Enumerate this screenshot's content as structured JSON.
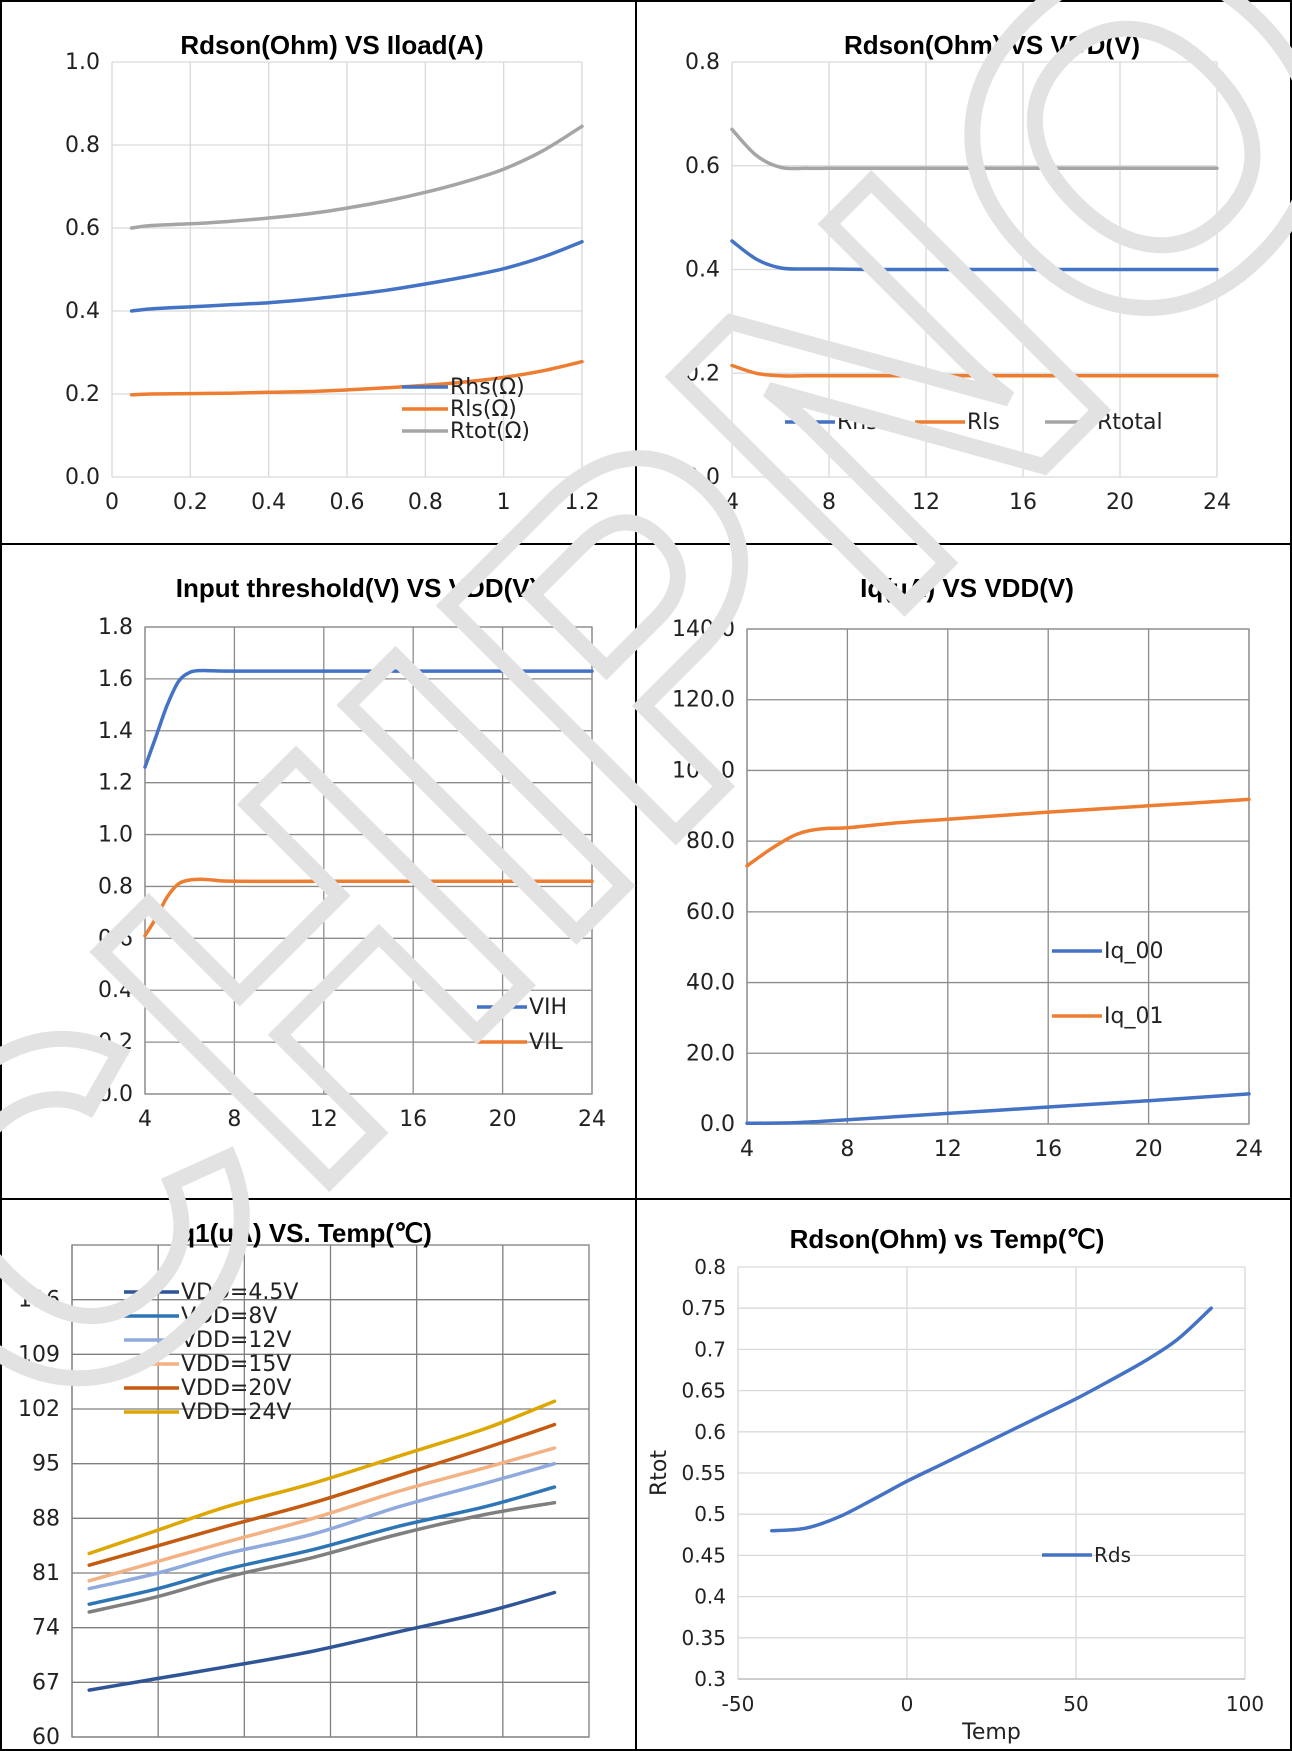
{
  "chart_data": [
    {
      "type": "line",
      "title": "Rdson(Ohm) VS Iload(A)",
      "xlabel": "",
      "ylabel": "",
      "xlim": [
        0,
        1.2
      ],
      "ylim": [
        0,
        1.0
      ],
      "xticks": [
        "0",
        "0.2",
        "0.4",
        "0.6",
        "0.8",
        "1",
        "1.2"
      ],
      "yticks": [
        "0.0",
        "0.2",
        "0.4",
        "0.6",
        "0.8",
        "1.0"
      ],
      "grid": true,
      "legend_position": "bottom-right",
      "series": [
        {
          "name": "Rhs(Ω)",
          "color": "#4472C4",
          "x": [
            0.05,
            0.1,
            0.2,
            0.3,
            0.4,
            0.5,
            0.6,
            0.7,
            0.8,
            0.9,
            1.0,
            1.1,
            1.2
          ],
          "y": [
            0.4,
            0.405,
            0.41,
            0.415,
            0.42,
            0.428,
            0.438,
            0.45,
            0.465,
            0.482,
            0.502,
            0.53,
            0.567
          ]
        },
        {
          "name": "Rls(Ω)",
          "color": "#ED7D31",
          "x": [
            0.05,
            0.1,
            0.2,
            0.3,
            0.4,
            0.5,
            0.6,
            0.7,
            0.8,
            0.9,
            1.0,
            1.1,
            1.2
          ],
          "y": [
            0.198,
            0.2,
            0.201,
            0.202,
            0.204,
            0.206,
            0.21,
            0.215,
            0.221,
            0.229,
            0.24,
            0.256,
            0.278
          ]
        },
        {
          "name": "Rtot(Ω)",
          "color": "#A5A5A5",
          "x": [
            0.05,
            0.1,
            0.2,
            0.3,
            0.4,
            0.5,
            0.6,
            0.7,
            0.8,
            0.9,
            1.0,
            1.1,
            1.2
          ],
          "y": [
            0.6,
            0.606,
            0.61,
            0.616,
            0.624,
            0.634,
            0.648,
            0.665,
            0.686,
            0.711,
            0.742,
            0.786,
            0.845
          ]
        }
      ]
    },
    {
      "type": "line",
      "title": "Rdson(Ohm) VS VDD(V)",
      "xlabel": "",
      "ylabel": "",
      "xlim": [
        4,
        24
      ],
      "ylim": [
        0,
        0.8
      ],
      "xticks": [
        "4",
        "8",
        "12",
        "16",
        "20",
        "24"
      ],
      "yticks": [
        "0.0",
        "0.2",
        "0.4",
        "0.6",
        "0.8"
      ],
      "grid": true,
      "legend_position": "bottom",
      "series": [
        {
          "name": "Rhs",
          "color": "#4472C4",
          "x": [
            4,
            5,
            6,
            7,
            8,
            10,
            12,
            16,
            20,
            24
          ],
          "y": [
            0.455,
            0.42,
            0.403,
            0.401,
            0.401,
            0.4,
            0.4,
            0.4,
            0.4,
            0.4
          ]
        },
        {
          "name": "Rls",
          "color": "#ED7D31",
          "x": [
            4,
            5,
            6,
            7,
            8,
            10,
            12,
            16,
            20,
            24
          ],
          "y": [
            0.215,
            0.2,
            0.195,
            0.195,
            0.195,
            0.195,
            0.195,
            0.195,
            0.195,
            0.195
          ]
        },
        {
          "name": "Rtotal",
          "color": "#A5A5A5",
          "x": [
            4,
            5,
            6,
            7,
            8,
            10,
            12,
            16,
            20,
            24
          ],
          "y": [
            0.67,
            0.62,
            0.597,
            0.595,
            0.595,
            0.595,
            0.595,
            0.595,
            0.595,
            0.595
          ]
        }
      ]
    },
    {
      "type": "line",
      "title": "Input threshold(V) VS VDD(V)",
      "xlabel": "",
      "ylabel": "",
      "xlim": [
        4,
        24
      ],
      "ylim": [
        0,
        1.8
      ],
      "xticks": [
        "4",
        "8",
        "12",
        "16",
        "20",
        "24"
      ],
      "yticks": [
        "0.0",
        "0.2",
        "0.4",
        "0.6",
        "0.8",
        "1.0",
        "1.2",
        "1.4",
        "1.6",
        "1.8"
      ],
      "grid": true,
      "legend_position": "bottom-right",
      "series": [
        {
          "name": "VIH",
          "color": "#4472C4",
          "x": [
            4,
            4.5,
            5,
            5.5,
            6,
            6.5,
            7,
            8,
            12,
            16,
            20,
            24
          ],
          "y": [
            1.26,
            1.38,
            1.5,
            1.59,
            1.625,
            1.632,
            1.631,
            1.63,
            1.63,
            1.63,
            1.63,
            1.63
          ]
        },
        {
          "name": "VIL",
          "color": "#ED7D31",
          "x": [
            4,
            4.5,
            5,
            5.5,
            6,
            6.5,
            7,
            8,
            12,
            16,
            20,
            24
          ],
          "y": [
            0.61,
            0.68,
            0.76,
            0.81,
            0.825,
            0.828,
            0.825,
            0.82,
            0.82,
            0.82,
            0.82,
            0.82
          ]
        }
      ]
    },
    {
      "type": "line",
      "title": "Iq(uA) VS VDD(V)",
      "xlabel": "",
      "ylabel": "",
      "xlim": [
        4,
        24
      ],
      "ylim": [
        0,
        140
      ],
      "xticks": [
        "4",
        "8",
        "12",
        "16",
        "20",
        "24"
      ],
      "yticks": [
        "0.0",
        "20.0",
        "40.0",
        "60.0",
        "80.0",
        "100.0",
        "120.0",
        "140.0"
      ],
      "grid": true,
      "legend_position": "right",
      "series": [
        {
          "name": "Iq_00",
          "color": "#4472C4",
          "x": [
            4,
            6,
            8,
            12,
            16,
            20,
            24
          ],
          "y": [
            0.2,
            0.4,
            1.2,
            3.0,
            4.8,
            6.6,
            8.5
          ]
        },
        {
          "name": "Iq_01",
          "color": "#ED7D31",
          "x": [
            4,
            5,
            6,
            7,
            8,
            10,
            12,
            16,
            20,
            24
          ],
          "y": [
            73,
            78,
            82,
            83.5,
            83.8,
            85.2,
            86.2,
            88.2,
            90,
            91.8
          ]
        }
      ]
    },
    {
      "type": "line",
      "title": "Iq1(uA) VS. Temp(℃)",
      "xlabel": "",
      "ylabel": "",
      "xlim": [
        -45,
        105
      ],
      "ylim": [
        60,
        123
      ],
      "xticks": [
        "-45",
        "-20",
        "5",
        "30",
        "55",
        "80"
      ],
      "yticks": [
        "60",
        "67",
        "74",
        "81",
        "88",
        "95",
        "102",
        "109",
        "116"
      ],
      "grid": true,
      "legend_position": "top-left",
      "series": [
        {
          "name": "VDD=4.5V",
          "color": "#2F5597",
          "x": [
            -40,
            -20,
            0,
            25,
            50,
            75,
            95
          ],
          "y": [
            66,
            67.5,
            69,
            71,
            73.5,
            76,
            78.5
          ]
        },
        {
          "name": "VDD=8V",
          "color": "#2E75B6",
          "x": [
            -40,
            -20,
            0,
            25,
            50,
            75,
            95
          ],
          "y": [
            77,
            79,
            81.5,
            84,
            87,
            89.5,
            92
          ]
        },
        {
          "name": "VDD=12V",
          "color": "#8FAADC",
          "x": [
            -40,
            -20,
            0,
            25,
            50,
            75,
            95
          ],
          "y": [
            79,
            81,
            83.5,
            86,
            89.5,
            92.5,
            95
          ]
        },
        {
          "name": "VDD=15V",
          "color": "#F4B183",
          "x": [
            -40,
            -20,
            0,
            25,
            50,
            75,
            95
          ],
          "y": [
            80,
            82.5,
            85,
            88,
            91.5,
            94.5,
            97
          ]
        },
        {
          "name": "VDD=20V",
          "color": "#C55A11",
          "x": [
            -40,
            -20,
            0,
            25,
            50,
            75,
            95
          ],
          "y": [
            82,
            84.5,
            87,
            90,
            93.5,
            97,
            100
          ]
        },
        {
          "name": "VDD=24V",
          "color": "#DDA700",
          "x": [
            -40,
            -20,
            0,
            25,
            50,
            75,
            95
          ],
          "y": [
            83.5,
            86.5,
            89.5,
            92.5,
            96,
            99.5,
            103
          ]
        },
        {
          "name": "",
          "color": "#7F7F7F",
          "x": [
            -40,
            -20,
            0,
            25,
            50,
            75,
            95
          ],
          "y": [
            76,
            78,
            80.5,
            83,
            86,
            88.5,
            90
          ]
        }
      ]
    },
    {
      "type": "line",
      "title": "Rdson(Ohm) vs Temp(℃)",
      "xlabel": "Temp",
      "ylabel": "Rtot",
      "xlim": [
        -50,
        100
      ],
      "ylim": [
        0.3,
        0.8
      ],
      "xticks": [
        "-50",
        "0",
        "50",
        "100"
      ],
      "yticks": [
        "0.3",
        "0.35",
        "0.4",
        "0.45",
        "0.5",
        "0.55",
        "0.6",
        "0.65",
        "0.7",
        "0.75",
        "0.8"
      ],
      "grid": true,
      "legend_position": "right",
      "series": [
        {
          "name": "Rds",
          "color": "#4472C4",
          "x": [
            -40,
            -30,
            -20,
            -10,
            0,
            10,
            20,
            30,
            40,
            50,
            60,
            70,
            80,
            90
          ],
          "y": [
            0.48,
            0.483,
            0.497,
            0.518,
            0.54,
            0.56,
            0.58,
            0.6,
            0.62,
            0.64,
            0.662,
            0.685,
            0.712,
            0.75
          ]
        }
      ]
    }
  ],
  "watermark": "CHIPNOR"
}
